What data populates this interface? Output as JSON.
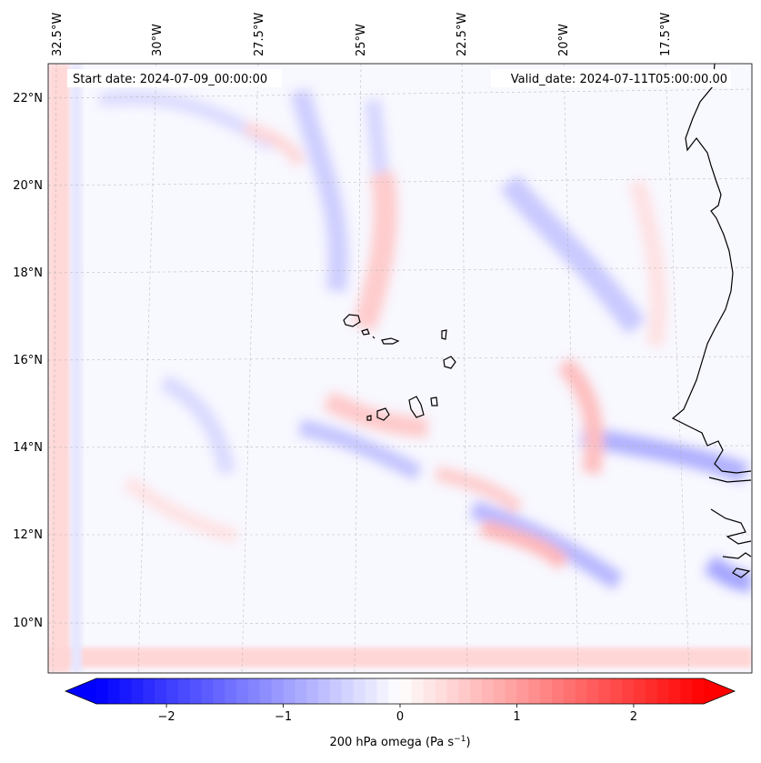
{
  "header": {
    "start_date": "Start date: 2024-07-09_00:00:00",
    "valid_date": "Valid_date: 2024-07-11T05:00:00.00"
  },
  "lon_labels": [
    "32.5°W",
    "30°W",
    "27.5°W",
    "25°W",
    "22.5°W",
    "20°W",
    "17.5°W"
  ],
  "lat_labels": [
    "22°N",
    "20°N",
    "18°N",
    "16°N",
    "14°N",
    "12°N",
    "10°N"
  ],
  "colorbar": {
    "ticks": [
      "−2",
      "−1",
      "0",
      "1",
      "2"
    ],
    "tick_values": [
      -2,
      -1,
      0,
      1,
      2
    ],
    "range": [
      -2.6,
      2.6
    ],
    "low_color": "#0000ff",
    "mid_color": "#ffffff",
    "high_color": "#ff0000",
    "label": "200 hPa omega (Pa s",
    "label_sup": "−1",
    "label_end": ")"
  },
  "coastline_color": "#000000",
  "gridline_color": "#b0b0b0"
}
